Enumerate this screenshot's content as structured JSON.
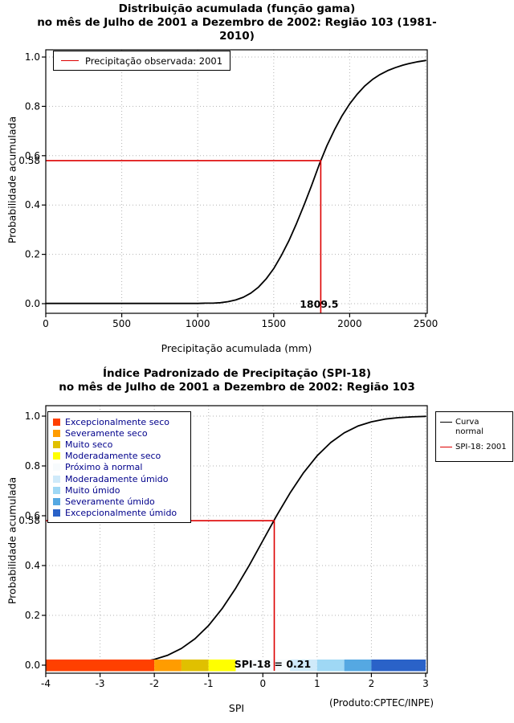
{
  "figure": {
    "caption": "(Produto:CPTEC/INPE)",
    "category_legend_text_color": "#00008b"
  },
  "chart_data": [
    {
      "type": "line",
      "title": "Distribuição acumulada (função gama)",
      "subtitle": "no mês de Julho de 2001 a Dezembro de 2002: Região 103 (1981-2010)",
      "xlabel": "Precipitação acumulada (mm)",
      "ylabel": "Probabilidade acumulada",
      "xlim": [
        0,
        2500
      ],
      "ylim": [
        0,
        1
      ],
      "xticks": [
        0,
        500,
        1000,
        1500,
        2000,
        2500
      ],
      "xtick_labels": [
        "0",
        "500",
        "1000",
        "1500",
        "2000",
        "2500"
      ],
      "yticks": [
        0,
        0.2,
        0.4,
        0.6,
        0.8,
        1
      ],
      "ytick_labels": [
        "0.0",
        "0.2",
        "0.4",
        "0.6",
        "0.8",
        "1.0"
      ],
      "grid": true,
      "legend": {
        "position": "top-left",
        "entries": [
          {
            "label": "Precipitação observada: 2001",
            "color": "#dd0000",
            "type": "line"
          }
        ]
      },
      "series": [
        {
          "name": "Distribuição gama acumulada",
          "color": "#000000",
          "x": [
            0,
            200,
            400,
            600,
            800,
            1000,
            1050,
            1100,
            1150,
            1200,
            1250,
            1300,
            1350,
            1400,
            1450,
            1500,
            1550,
            1600,
            1650,
            1700,
            1750,
            1800,
            1850,
            1900,
            1950,
            2000,
            2050,
            2100,
            2150,
            2200,
            2250,
            2300,
            2350,
            2400,
            2450,
            2500
          ],
          "y": [
            0.001,
            0.001,
            0.001,
            0.001,
            0.001,
            0.001,
            0.002,
            0.002,
            0.004,
            0.008,
            0.015,
            0.026,
            0.043,
            0.067,
            0.1,
            0.142,
            0.195,
            0.255,
            0.325,
            0.4,
            0.48,
            0.565,
            0.64,
            0.705,
            0.762,
            0.81,
            0.85,
            0.883,
            0.909,
            0.929,
            0.945,
            0.957,
            0.967,
            0.975,
            0.981,
            0.986
          ]
        }
      ],
      "marker": {
        "x": 1809.5,
        "y": 0.58,
        "x_label": "1809.5",
        "y_label": "0.58",
        "color": "#dd0000"
      }
    },
    {
      "type": "line",
      "title": "Índice Padronizado de Precipitação (SPI-18)",
      "subtitle": "no mês de Julho de 2001 a Dezembro de 2002: Região 103",
      "xlabel": "SPI",
      "ylabel": "Probabilidade acumulada",
      "xlim": [
        -4,
        3
      ],
      "ylim": [
        0,
        1
      ],
      "xticks": [
        -4,
        -3,
        -2,
        -1,
        0,
        1,
        2,
        3
      ],
      "xtick_labels": [
        "-4",
        "-3",
        "-2",
        "-1",
        "0",
        "1",
        "2",
        "3"
      ],
      "yticks": [
        0,
        0.2,
        0.4,
        0.6,
        0.8,
        1
      ],
      "ytick_labels": [
        "0.0",
        "0.2",
        "0.4",
        "0.6",
        "0.8",
        "1.0"
      ],
      "grid": true,
      "category_legend": [
        {
          "label": "Excepcionalmente seco",
          "color": "#ff4000"
        },
        {
          "label": "Severamente seco",
          "color": "#ff9c00"
        },
        {
          "label": "Muito seco",
          "color": "#e0c000"
        },
        {
          "label": "Moderadamente seco",
          "color": "#ffff00"
        },
        {
          "label": "Próximo à normal",
          "color": "#f7fbfd"
        },
        {
          "label": "Moderadamente úmido",
          "color": "#cfeafa"
        },
        {
          "label": "Muito úmido",
          "color": "#9fd8f5"
        },
        {
          "label": "Severamente úmido",
          "color": "#55a8e2"
        },
        {
          "label": "Excepcionalmente úmido",
          "color": "#2a62c8"
        }
      ],
      "line_legend": [
        {
          "label": "Curva normal",
          "color": "#000000"
        },
        {
          "label": "SPI-18: 2001",
          "color": "#dd0000"
        }
      ],
      "series": [
        {
          "name": "Curva normal",
          "color": "#000000",
          "x": [
            -4,
            -3.75,
            -3.5,
            -3.25,
            -3,
            -2.75,
            -2.5,
            -2.25,
            -2,
            -1.75,
            -1.5,
            -1.25,
            -1,
            -0.75,
            -0.5,
            -0.25,
            0,
            0.25,
            0.5,
            0.75,
            1,
            1.25,
            1.5,
            1.75,
            2,
            2.25,
            2.5,
            2.75,
            3
          ],
          "y": [
            0.0,
            0.0001,
            0.0002,
            0.0006,
            0.0013,
            0.003,
            0.006,
            0.012,
            0.023,
            0.04,
            0.067,
            0.106,
            0.159,
            0.227,
            0.309,
            0.401,
            0.5,
            0.599,
            0.691,
            0.773,
            0.841,
            0.894,
            0.933,
            0.96,
            0.977,
            0.988,
            0.994,
            0.997,
            0.999
          ]
        }
      ],
      "marker": {
        "x": 0.21,
        "y": 0.58,
        "y_label": "0.58",
        "color": "#dd0000"
      },
      "annotation": "SPI-18 = 0.21",
      "colorbar": {
        "segments": [
          {
            "from": -4,
            "to": -2,
            "color": "#ff4000"
          },
          {
            "from": -2,
            "to": -1.5,
            "color": "#ff9c00"
          },
          {
            "from": -1.5,
            "to": -1,
            "color": "#e0c000"
          },
          {
            "from": -1,
            "to": -0.5,
            "color": "#ffff00"
          },
          {
            "from": -0.5,
            "to": 0.5,
            "color": "#f7fbfd"
          },
          {
            "from": 0.5,
            "to": 1,
            "color": "#cfeafa"
          },
          {
            "from": 1,
            "to": 1.5,
            "color": "#9fd8f5"
          },
          {
            "from": 1.5,
            "to": 2,
            "color": "#55a8e2"
          },
          {
            "from": 2,
            "to": 3,
            "color": "#2a62c8"
          }
        ]
      }
    }
  ]
}
